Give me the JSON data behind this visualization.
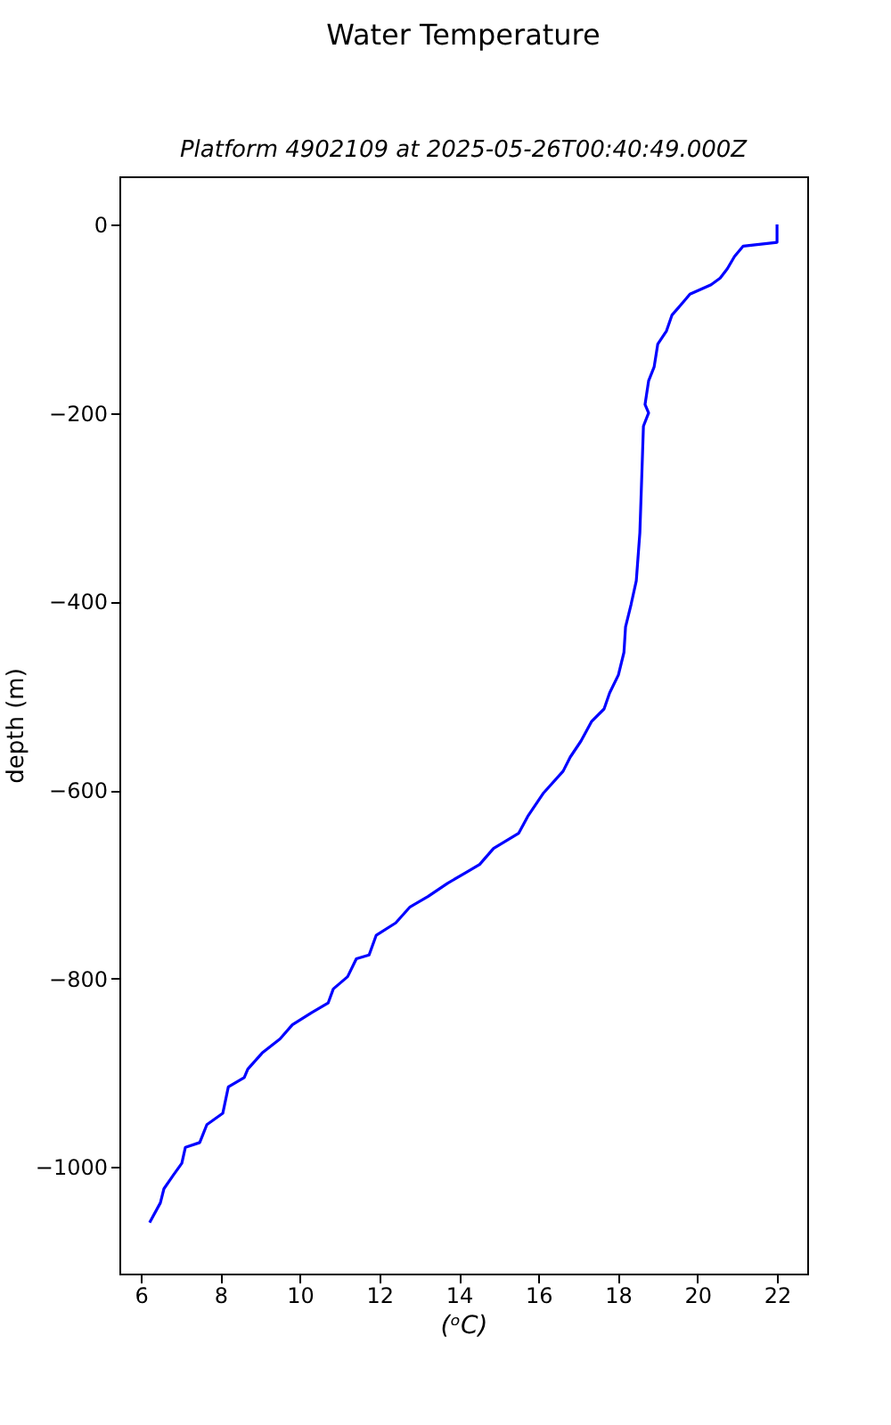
{
  "chart_data": {
    "type": "line",
    "title": "Water Temperature",
    "subtitle": "Platform 4902109 at 2025-05-26T00:40:49.000Z",
    "xlabel": "(ᵒC)",
    "ylabel": "depth (m)",
    "x": [
      22.0,
      22.0,
      21.15,
      20.93,
      20.75,
      20.57,
      20.34,
      19.81,
      19.63,
      19.36,
      19.22,
      19.0,
      18.91,
      18.77,
      18.68,
      18.77,
      18.64,
      18.6,
      18.55,
      18.46,
      18.33,
      18.19,
      18.15,
      18.01,
      17.79,
      17.65,
      17.34,
      17.07,
      16.8,
      16.62,
      16.13,
      15.73,
      15.5,
      14.87,
      14.52,
      14.16,
      13.71,
      13.22,
      12.77,
      12.41,
      11.92,
      11.74,
      11.42,
      11.2,
      10.84,
      10.71,
      10.3,
      9.81,
      9.5,
      9.05,
      8.69,
      8.6,
      8.2,
      8.06,
      7.66,
      7.48,
      7.12,
      7.03,
      6.81,
      6.58,
      6.49,
      6.22
    ],
    "series": [
      {
        "color": "#0000ff",
        "values": [
          0,
          -19,
          -23,
          -34,
          -47,
          -57,
          -64,
          -74,
          -83,
          -96,
          -113,
          -127,
          -151,
          -166,
          -191,
          -200,
          -214,
          -265,
          -327,
          -378,
          -403,
          -427,
          -454,
          -478,
          -497,
          -514,
          -527,
          -548,
          -565,
          -580,
          -603,
          -628,
          -646,
          -662,
          -679,
          -688,
          -699,
          -713,
          -724,
          -741,
          -754,
          -775,
          -779,
          -798,
          -811,
          -826,
          -836,
          -849,
          -864,
          -879,
          -896,
          -905,
          -915,
          -943,
          -955,
          -974,
          -979,
          -996,
          -1009,
          -1023,
          -1038,
          -1059
        ]
      }
    ],
    "xlim": [
      5.46,
      22.76
    ],
    "ylim": [
      -1113,
      51
    ],
    "xticks": [
      6,
      8,
      10,
      12,
      14,
      16,
      18,
      20,
      22
    ],
    "yticks": [
      -1000,
      -800,
      -600,
      -400,
      -200,
      0
    ],
    "grid": false
  }
}
